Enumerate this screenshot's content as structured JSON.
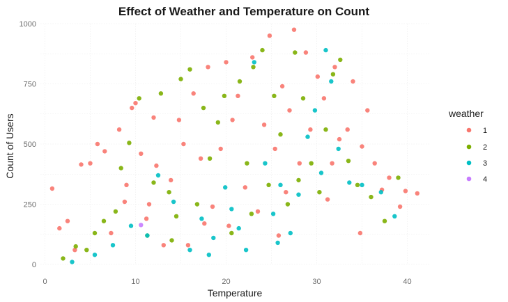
{
  "chart_data": {
    "type": "scatter",
    "title": "Effect of Weather and Temperature on Count",
    "xlabel": "Temperature",
    "ylabel": "Count of Users",
    "xlim": [
      -0.5,
      42.5
    ],
    "ylim": [
      0,
      1000
    ],
    "x_ticks": [
      0,
      10,
      20,
      30,
      40
    ],
    "x_tick_labels": [
      "0",
      "10",
      "20",
      "30",
      "40"
    ],
    "y_ticks": [
      0,
      250,
      500,
      750,
      1000
    ],
    "y_tick_labels": [
      "0",
      "250",
      "500",
      "750",
      "1000"
    ],
    "grid": true,
    "legend": {
      "title": "weather",
      "position": "right"
    },
    "series": [
      {
        "name": "1",
        "color": "#F8766D",
        "points": [
          [
            0.8,
            315
          ],
          [
            1.6,
            150
          ],
          [
            2.5,
            180
          ],
          [
            3.3,
            60
          ],
          [
            4,
            415
          ],
          [
            5,
            420
          ],
          [
            5.8,
            500
          ],
          [
            6.6,
            470
          ],
          [
            7.3,
            130
          ],
          [
            8.2,
            560
          ],
          [
            9,
            330
          ],
          [
            9.6,
            650
          ],
          [
            10,
            670
          ],
          [
            10.6,
            460
          ],
          [
            11.5,
            250
          ],
          [
            12,
            610
          ],
          [
            12.3,
            410
          ],
          [
            13.1,
            80
          ],
          [
            13.9,
            350
          ],
          [
            14.8,
            600
          ],
          [
            15.3,
            500
          ],
          [
            16.4,
            710
          ],
          [
            17.2,
            440
          ],
          [
            18,
            820
          ],
          [
            18.5,
            240
          ],
          [
            19.4,
            480
          ],
          [
            20,
            840
          ],
          [
            20.7,
            600
          ],
          [
            21.3,
            700
          ],
          [
            22.1,
            320
          ],
          [
            22.9,
            860
          ],
          [
            23.5,
            220
          ],
          [
            24.2,
            580
          ],
          [
            24.8,
            950
          ],
          [
            25.4,
            480
          ],
          [
            26.2,
            740
          ],
          [
            27,
            640
          ],
          [
            27.5,
            975
          ],
          [
            28.1,
            420
          ],
          [
            28.8,
            880
          ],
          [
            29.3,
            560
          ],
          [
            30.1,
            780
          ],
          [
            30.8,
            690
          ],
          [
            31.2,
            270
          ],
          [
            32,
            820
          ],
          [
            32.5,
            520
          ],
          [
            33.4,
            560
          ],
          [
            34,
            760
          ],
          [
            35,
            490
          ],
          [
            35.6,
            640
          ],
          [
            36.4,
            420
          ],
          [
            37.2,
            310
          ],
          [
            38,
            360
          ],
          [
            39.2,
            240
          ],
          [
            39.8,
            305
          ],
          [
            41.1,
            295
          ],
          [
            20.3,
            160
          ],
          [
            25.8,
            120
          ],
          [
            15.8,
            80
          ],
          [
            34.8,
            130
          ],
          [
            11.2,
            190
          ],
          [
            26.6,
            300
          ],
          [
            31.7,
            420
          ],
          [
            17.6,
            170
          ],
          [
            8.8,
            260
          ]
        ]
      },
      {
        "name": "2",
        "color": "#7CAE00",
        "points": [
          [
            2,
            25
          ],
          [
            3.4,
            75
          ],
          [
            4.6,
            60
          ],
          [
            5.5,
            130
          ],
          [
            6.5,
            180
          ],
          [
            7.8,
            220
          ],
          [
            8.4,
            400
          ],
          [
            9.3,
            505
          ],
          [
            10.4,
            690
          ],
          [
            11.3,
            120
          ],
          [
            12,
            340
          ],
          [
            12.8,
            710
          ],
          [
            13.7,
            300
          ],
          [
            14.5,
            200
          ],
          [
            15,
            770
          ],
          [
            16,
            810
          ],
          [
            16.8,
            250
          ],
          [
            17.5,
            650
          ],
          [
            18.2,
            440
          ],
          [
            19.1,
            590
          ],
          [
            19.8,
            700
          ],
          [
            20.6,
            130
          ],
          [
            21.5,
            760
          ],
          [
            22.3,
            420
          ],
          [
            23,
            820
          ],
          [
            24,
            890
          ],
          [
            24.7,
            330
          ],
          [
            25.3,
            700
          ],
          [
            26,
            540
          ],
          [
            26.8,
            250
          ],
          [
            27.6,
            880
          ],
          [
            28.5,
            690
          ],
          [
            29.4,
            420
          ],
          [
            30.3,
            300
          ],
          [
            31,
            560
          ],
          [
            31.8,
            790
          ],
          [
            32.6,
            850
          ],
          [
            33.5,
            430
          ],
          [
            34.5,
            330
          ],
          [
            36,
            280
          ],
          [
            37.5,
            180
          ],
          [
            39,
            360
          ],
          [
            14,
            100
          ],
          [
            22.8,
            210
          ],
          [
            28,
            350
          ]
        ]
      },
      {
        "name": "3",
        "color": "#00BFC4",
        "points": [
          [
            3,
            10
          ],
          [
            5.5,
            40
          ],
          [
            7.5,
            80
          ],
          [
            9.5,
            160
          ],
          [
            11.3,
            120
          ],
          [
            12.5,
            370
          ],
          [
            14.2,
            260
          ],
          [
            16,
            60
          ],
          [
            17.3,
            190
          ],
          [
            18.6,
            110
          ],
          [
            19.9,
            320
          ],
          [
            20.6,
            230
          ],
          [
            21.4,
            150
          ],
          [
            22.2,
            60
          ],
          [
            23.1,
            840
          ],
          [
            24.3,
            420
          ],
          [
            25.2,
            210
          ],
          [
            26,
            330
          ],
          [
            27.1,
            130
          ],
          [
            28,
            290
          ],
          [
            29,
            530
          ],
          [
            29.8,
            640
          ],
          [
            30.5,
            380
          ],
          [
            31,
            890
          ],
          [
            31.6,
            760
          ],
          [
            32.4,
            480
          ],
          [
            33.6,
            340
          ],
          [
            35,
            330
          ],
          [
            37.1,
            300
          ],
          [
            38.6,
            200
          ],
          [
            25.7,
            90
          ],
          [
            18.1,
            40
          ]
        ]
      },
      {
        "name": "4",
        "color": "#C77CFF",
        "points": [
          [
            10.6,
            164
          ]
        ]
      }
    ]
  }
}
